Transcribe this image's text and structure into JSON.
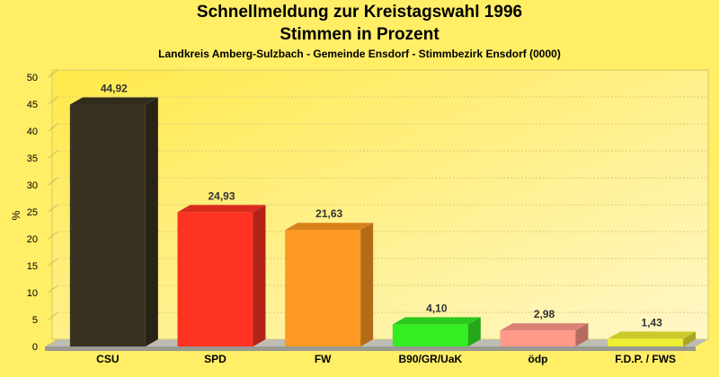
{
  "chart_data": {
    "type": "bar",
    "title_line1": "Schnellmeldung zur Kreistagswahl 1996",
    "title_line2": "Stimmen in Prozent",
    "subtitle": "Landkreis Amberg-Sulzbach - Gemeinde Ensdorf - Stimmbezirk Ensdorf (0000)",
    "ylabel": "%",
    "ylim": [
      0,
      50
    ],
    "yticks": [
      0,
      5,
      10,
      15,
      20,
      25,
      30,
      35,
      40,
      45,
      50
    ],
    "grid": true,
    "categories": [
      "CSU",
      "SPD",
      "FW",
      "B90/GR/UaK",
      "ödp",
      "F.D.P. / FWS"
    ],
    "values": [
      44.92,
      24.93,
      21.63,
      4.1,
      2.98,
      1.43
    ],
    "value_labels": [
      "44,92",
      "24,93",
      "21,63",
      "4,10",
      "2,98",
      "1,43"
    ],
    "colors": [
      "#3a3220",
      "#ff3322",
      "#ff9922",
      "#33ee22",
      "#ff9988",
      "#eeee33"
    ]
  }
}
